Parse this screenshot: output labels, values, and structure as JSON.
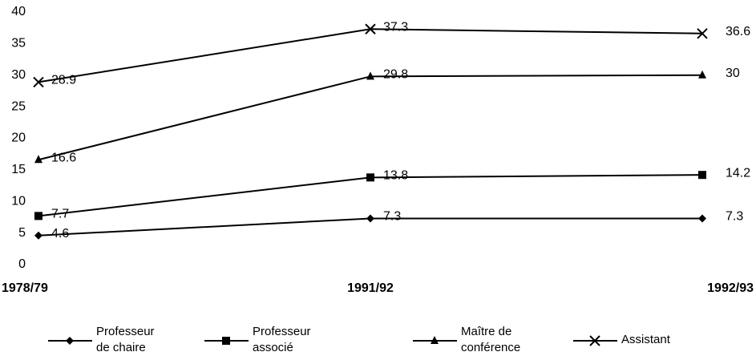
{
  "chart_data": {
    "type": "line",
    "categories": [
      "1978/79",
      "1991/92",
      "1992/93"
    ],
    "series": [
      {
        "name": "Professeur de chaire",
        "color": "#000000",
        "marker": "diamond",
        "values": [
          4.6,
          7.3,
          7.3
        ]
      },
      {
        "name": "Professeur associé",
        "color": "#000000",
        "marker": "square",
        "values": [
          7.7,
          13.8,
          14.2
        ]
      },
      {
        "name": "Maître de conférence",
        "color": "#000000",
        "marker": "triangle",
        "values": [
          16.6,
          29.8,
          30
        ]
      },
      {
        "name": "Assistant",
        "color": "#000000",
        "marker": "x",
        "values": [
          28.9,
          37.3,
          36.6
        ]
      }
    ],
    "ylim": [
      0,
      40
    ],
    "yticks": [
      0,
      5,
      10,
      15,
      20,
      25,
      30,
      35,
      40
    ],
    "grid": false,
    "legend": "bottom"
  }
}
